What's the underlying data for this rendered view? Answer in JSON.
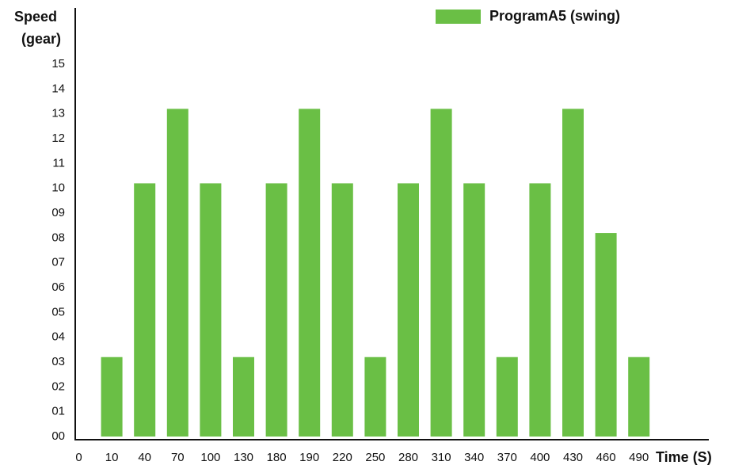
{
  "chart_data": {
    "type": "bar",
    "ylabel": [
      "Speed",
      "(gear)"
    ],
    "xlabel": "Time (S)",
    "categories": [
      "0",
      "10",
      "40",
      "70",
      "100",
      "130",
      "180",
      "190",
      "220",
      "250",
      "280",
      "310",
      "340",
      "370",
      "400",
      "430",
      "460",
      "490"
    ],
    "series": [
      {
        "name": "ProgramA5 (swing)",
        "color": "#6abf45",
        "values": [
          null,
          3.2,
          10.2,
          13.2,
          10.2,
          3.2,
          10.2,
          13.2,
          10.2,
          3.2,
          10.2,
          13.2,
          10.2,
          3.2,
          10.2,
          13.2,
          8.2,
          3.2
        ]
      }
    ],
    "ylim": [
      0,
      15
    ],
    "yticks": [
      {
        "value": 0,
        "label": "00"
      },
      {
        "value": 1,
        "label": "01"
      },
      {
        "value": 2,
        "label": "02"
      },
      {
        "value": 3,
        "label": "03"
      },
      {
        "value": 4,
        "label": "04"
      },
      {
        "value": 5,
        "label": "05"
      },
      {
        "value": 6,
        "label": "06"
      },
      {
        "value": 7,
        "label": "07"
      },
      {
        "value": 8,
        "label": "08"
      },
      {
        "value": 9,
        "label": "09"
      },
      10,
      11,
      12,
      13,
      14,
      15
    ],
    "legend": "top-right",
    "grid": false
  }
}
